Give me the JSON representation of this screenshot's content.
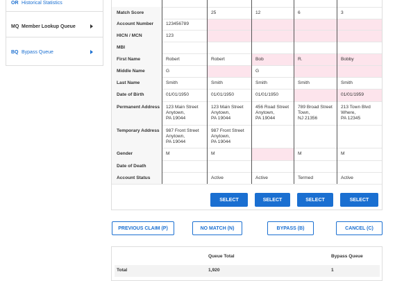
{
  "sidebar": {
    "items": [
      {
        "code": "OR",
        "label": "Historical Statistics"
      },
      {
        "code": "MQ",
        "label": "Member Lookup Queue"
      },
      {
        "code": "BQ",
        "label": "Bypass Queue"
      }
    ]
  },
  "comparison": {
    "rows": [
      {
        "label": "Match Score",
        "cells": [
          null,
          "25",
          "12",
          "6",
          "3"
        ],
        "highlighted": [
          false,
          false,
          false,
          false,
          false
        ]
      },
      {
        "label": "Account Number",
        "cells": [
          "123456789",
          null,
          null,
          null,
          null
        ],
        "highlighted": [
          false,
          true,
          true,
          true,
          true
        ]
      },
      {
        "label": "HICN / MCN",
        "cells": [
          "123",
          null,
          null,
          null,
          null
        ],
        "highlighted": [
          false,
          true,
          true,
          true,
          true
        ]
      },
      {
        "label": "MBI",
        "cells": [
          null,
          null,
          null,
          null,
          null
        ],
        "highlighted": [
          false,
          false,
          false,
          false,
          false
        ]
      },
      {
        "label": "First Name",
        "cells": [
          "Robert",
          "Robert",
          "Bob",
          "R.",
          "Bobby"
        ],
        "highlighted": [
          false,
          false,
          true,
          true,
          true
        ]
      },
      {
        "label": "Middle Name",
        "cells": [
          "G",
          null,
          "G",
          null,
          null
        ],
        "highlighted": [
          false,
          true,
          false,
          true,
          true
        ]
      },
      {
        "label": "Last Name",
        "cells": [
          "Smith",
          "Smith",
          "Smith",
          "Smith",
          "Smith"
        ],
        "highlighted": [
          false,
          false,
          false,
          false,
          false
        ]
      },
      {
        "label": "Date of Birth",
        "cells": [
          "01/01/1950",
          "01/01/1950",
          "01/01/1950",
          null,
          "01/01/1959"
        ],
        "highlighted": [
          false,
          false,
          false,
          true,
          true
        ]
      },
      {
        "label": "Permanent Address",
        "cells": [
          [
            "123 Main Street",
            "Anytown,",
            "PA 19044"
          ],
          [
            "123 Main Street",
            "Anytown,",
            "PA 19044"
          ],
          [
            "456 Road Street",
            "Anytown,",
            "PA 19044"
          ],
          [
            "789 Broad Street",
            "Town,",
            "NJ 21356"
          ],
          [
            "213 Town Blvd",
            "Where,",
            "PA 12345"
          ]
        ],
        "highlighted": [
          false,
          false,
          false,
          false,
          false
        ]
      },
      {
        "label": "Temporary Address",
        "cells": [
          [
            "987 Front Street",
            "Anytown,",
            "PA 19044"
          ],
          [
            "987 Front Street",
            "Anytown,",
            "PA 19044"
          ],
          null,
          null,
          null
        ],
        "highlighted": [
          false,
          false,
          false,
          false,
          false
        ]
      },
      {
        "label": "Gender",
        "cells": [
          "M",
          "M",
          null,
          "M",
          "M"
        ],
        "highlighted": [
          false,
          false,
          true,
          false,
          false
        ]
      },
      {
        "label": "Date of Death",
        "cells": [
          null,
          null,
          null,
          null,
          null
        ],
        "highlighted": [
          false,
          false,
          false,
          false,
          false
        ]
      },
      {
        "label": "Account Status",
        "cells": [
          null,
          "Active",
          "Active",
          "Termed",
          "Active"
        ],
        "highlighted": [
          false,
          false,
          false,
          false,
          false
        ]
      }
    ],
    "select_buttons": [
      "SELECT",
      "SELECT",
      "SELECT",
      "SELECT"
    ]
  },
  "actions": [
    "PREVIOUS CLAIM (P)",
    "NO MATCH (N)",
    "BYPASS (B)",
    "CANCEL (C)"
  ],
  "summary": {
    "headers": [
      "Queue Total",
      "Bypass Queue"
    ],
    "rows": [
      {
        "label": "Total",
        "values": [
          "1,920",
          "1"
        ]
      }
    ]
  }
}
